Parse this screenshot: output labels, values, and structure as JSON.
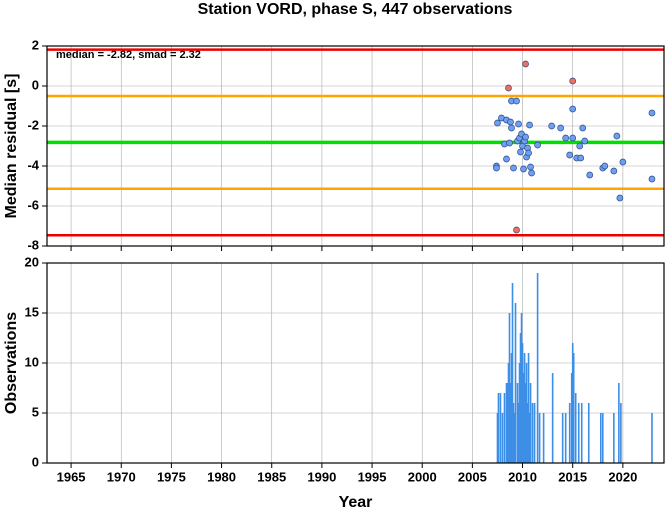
{
  "chart_data": [
    {
      "type": "scatter",
      "title": "Station VORD, phase S, 447 observations",
      "ylabel": "Median residual [s]",
      "annotation": "median = -2.82, smad = 2.32",
      "xlim": [
        1962.6,
        2024.1
      ],
      "xticks": [
        1965,
        1970,
        1975,
        1980,
        1985,
        1990,
        1995,
        2000,
        2005,
        2010,
        2015,
        2020
      ],
      "ylim": [
        -8,
        2
      ],
      "yticks": [
        2,
        0,
        -2,
        -4,
        -6,
        -8
      ],
      "grid": true,
      "hlines": [
        {
          "value": 1.82,
          "color": "#ee0000"
        },
        {
          "value": -0.5,
          "color": "#ffa500"
        },
        {
          "value": -2.82,
          "color": "#00e000"
        },
        {
          "value": -5.14,
          "color": "#ffa500"
        },
        {
          "value": -7.46,
          "color": "#ee0000"
        }
      ],
      "series": [
        {
          "color": "#6f9ff0",
          "x": [
            2007.4,
            2007.4,
            2007.5,
            2007.9,
            2008.2,
            2008.4,
            2008.4,
            2008.7,
            2008.9,
            2008.8,
            2008.9,
            2009.1,
            2009.4,
            2009.5,
            2009.6,
            2009.7,
            2009.8,
            2009.9,
            2010.0,
            2010.1,
            2010.2,
            2010.3,
            2010.4,
            2010.5,
            2010.6,
            2010.7,
            2010.8,
            2010.9,
            2011.5,
            2012.9,
            2013.8,
            2014.3,
            2014.7,
            2015.0,
            2015.0,
            2015.4,
            2015.7,
            2015.8,
            2016.0,
            2016.2,
            2016.7,
            2018.0,
            2018.2,
            2019.1,
            2019.4,
            2019.7,
            2020.0,
            2022.9,
            2022.9
          ],
          "values": [
            -4.0,
            -4.1,
            -1.85,
            -1.6,
            -2.9,
            -1.7,
            -3.65,
            -2.85,
            -0.75,
            -1.8,
            -2.1,
            -4.1,
            -0.75,
            -2.75,
            -1.9,
            -2.6,
            -3.3,
            -2.4,
            -3.0,
            -4.15,
            -2.75,
            -2.55,
            -3.55,
            -3.1,
            -3.35,
            -1.95,
            -4.05,
            -4.35,
            -2.95,
            -2.0,
            -2.1,
            -2.6,
            -3.45,
            -1.15,
            -2.6,
            -3.6,
            -3.0,
            -3.6,
            -2.1,
            -2.75,
            -4.45,
            -4.1,
            -4.0,
            -4.25,
            -2.5,
            -5.6,
            -3.8,
            -1.35,
            -4.65
          ]
        },
        {
          "color": "#f0705a",
          "x": [
            2008.6,
            2009.4,
            2010.3,
            2015.0
          ],
          "values": [
            -0.1,
            -7.2,
            1.1,
            0.25
          ]
        }
      ]
    },
    {
      "type": "bar",
      "xlabel": "Year",
      "ylabel": "Observations",
      "color": "#3c8ee6",
      "xlim": [
        1962.6,
        2024.1
      ],
      "xticks": [
        1965,
        1970,
        1975,
        1980,
        1985,
        1990,
        1995,
        2000,
        2005,
        2010,
        2015,
        2020
      ],
      "ylim": [
        0,
        20
      ],
      "yticks": [
        0,
        5,
        10,
        15,
        20
      ],
      "grid": true,
      "x": [
        2007.5,
        2007.6,
        2007.8,
        2008.0,
        2008.2,
        2008.4,
        2008.5,
        2008.6,
        2008.7,
        2008.8,
        2008.9,
        2009.0,
        2009.1,
        2009.2,
        2009.3,
        2009.5,
        2009.6,
        2009.7,
        2009.8,
        2009.9,
        2010.0,
        2010.1,
        2010.2,
        2010.3,
        2010.4,
        2010.5,
        2010.6,
        2010.7,
        2010.8,
        2011.0,
        2011.2,
        2011.5,
        2011.7,
        2012.1,
        2013.0,
        2014.0,
        2014.3,
        2014.7,
        2014.9,
        2015.0,
        2015.1,
        2015.3,
        2015.6,
        2015.9,
        2016.6,
        2017.8,
        2018.0,
        2019.1,
        2019.6,
        2019.8,
        2022.9
      ],
      "values": [
        5,
        7,
        7,
        5,
        7,
        8,
        8,
        10,
        15,
        8,
        11,
        18,
        6,
        5,
        16,
        8,
        6,
        10,
        13,
        15,
        12,
        9,
        11,
        8,
        10,
        6,
        11,
        5,
        8,
        6,
        6,
        19,
        5,
        5,
        9,
        5,
        5,
        6,
        9,
        12,
        11,
        7,
        6,
        6,
        6,
        5,
        5,
        5,
        8,
        6,
        5
      ]
    }
  ]
}
